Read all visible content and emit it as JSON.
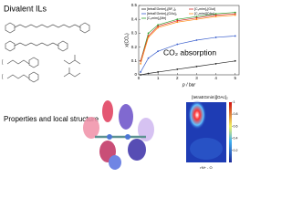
{
  "header": "Divalent ILs",
  "footer": "Properties and local structure",
  "chart_data": [
    {
      "type": "line",
      "annotation": "CO₂ absorption",
      "xlabel": "p / bar",
      "ylabel": "x(CO₂)",
      "x": [
        0.1,
        0.5,
        1,
        2,
        3,
        4,
        5
      ],
      "series": [
        {
          "name": "[tetraEGmim]₂[BF₄]₂",
          "color": "#222222",
          "values": [
            0,
            0.01,
            0.02,
            0.04,
            0.06,
            0.08,
            0.1
          ]
        },
        {
          "name": "[tetraEGmim]₂[OAc]₂",
          "color": "#3a5fcd",
          "values": [
            0.02,
            0.12,
            0.17,
            0.22,
            0.25,
            0.27,
            0.28
          ]
        },
        {
          "name": "[C₈mim]₂[Me]",
          "color": "#2ca02c",
          "values": [
            0.1,
            0.3,
            0.36,
            0.4,
            0.42,
            0.44,
            0.45
          ]
        },
        {
          "name": "[C₈mim]₂[Glut]",
          "color": "#d62728",
          "values": [
            0.1,
            0.28,
            0.35,
            0.39,
            0.41,
            0.43,
            0.44
          ]
        },
        {
          "name": "[C₂mim][OAc]",
          "color": "#ff8c1a",
          "values": [
            0.08,
            0.27,
            0.34,
            0.38,
            0.4,
            0.42,
            0.43
          ]
        }
      ],
      "xlim": [
        0,
        5.2
      ],
      "xticks": [
        0,
        1,
        2,
        3,
        4,
        5
      ],
      "ylim": [
        0,
        0.5
      ],
      "yticks": [
        0,
        0.1,
        0.2,
        0.3,
        0.4,
        0.5
      ]
    },
    {
      "type": "heatmap",
      "title": "[tetraEGmim][OAc]₂",
      "xlabel": "rN+ - O",
      "clim": [
        0,
        1
      ],
      "cticks": [
        0.2,
        0.4,
        0.6,
        0.8,
        1
      ]
    }
  ]
}
